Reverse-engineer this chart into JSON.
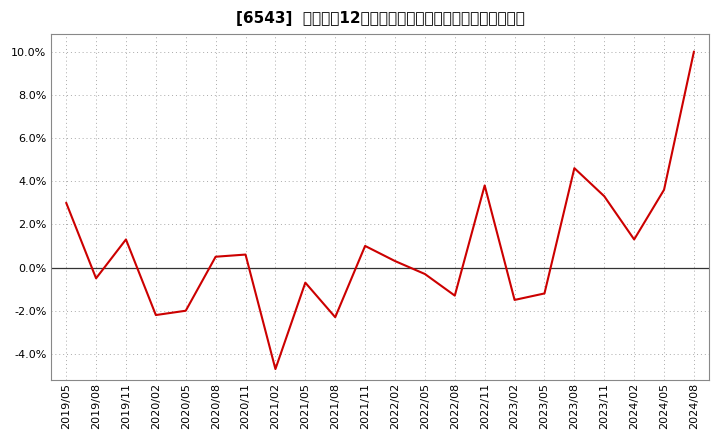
{
  "title": "[6543]  売上高の12か月移動合計の対前年同期増減率の推移",
  "line_color": "#cc0000",
  "background_color": "#ffffff",
  "plot_bg_color": "#ffffff",
  "grid_color": "#aaaaaa",
  "zero_line_color": "#333333",
  "ylim": [
    -0.052,
    0.108
  ],
  "yticks": [
    -0.04,
    -0.02,
    0.0,
    0.02,
    0.04,
    0.06,
    0.08,
    0.1
  ],
  "dates": [
    "2019/05",
    "2019/08",
    "2019/11",
    "2020/02",
    "2020/05",
    "2020/08",
    "2020/11",
    "2021/02",
    "2021/05",
    "2021/08",
    "2021/11",
    "2022/02",
    "2022/05",
    "2022/08",
    "2022/11",
    "2023/02",
    "2023/05",
    "2023/08",
    "2023/11",
    "2024/02",
    "2024/05",
    "2024/08"
  ],
  "values": [
    0.03,
    -0.005,
    0.013,
    -0.022,
    -0.02,
    0.005,
    0.006,
    -0.047,
    -0.007,
    -0.023,
    0.01,
    0.003,
    -0.003,
    -0.013,
    0.038,
    -0.015,
    -0.012,
    0.046,
    0.033,
    0.013,
    0.036,
    0.1
  ],
  "title_fontsize": 11,
  "tick_fontsize": 8,
  "xlabel_rotation": 90
}
